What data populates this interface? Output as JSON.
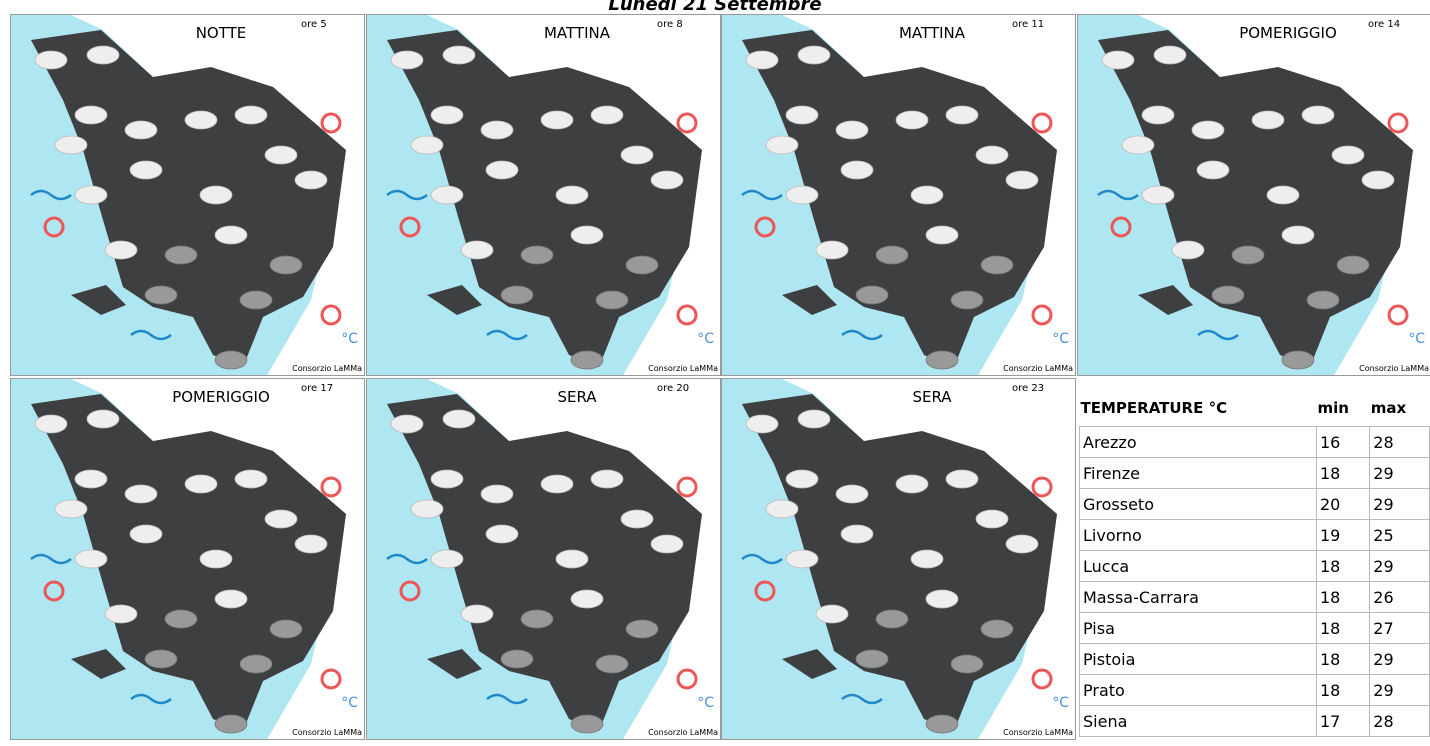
{
  "header": {
    "title": "Lunedì 21 Settembre"
  },
  "panels": [
    {
      "period": "NOTTE",
      "hour": "ore 5",
      "unit": "°C",
      "credit": "Consorzio LaMMa"
    },
    {
      "period": "MATTINA",
      "hour": "ore 8",
      "unit": "°C",
      "credit": "Consorzio LaMMa"
    },
    {
      "period": "MATTINA",
      "hour": "ore 11",
      "unit": "°C",
      "credit": "Consorzio LaMMa"
    },
    {
      "period": "POMERIGGIO",
      "hour": "ore 14",
      "unit": "°C",
      "credit": "Consorzio LaMMa"
    },
    {
      "period": "POMERIGGIO",
      "hour": "ore 17",
      "unit": "°C",
      "credit": "Consorzio LaMMa"
    },
    {
      "period": "SERA",
      "hour": "ore 20",
      "unit": "°C",
      "credit": "Consorzio LaMMa"
    },
    {
      "period": "SERA",
      "hour": "ore 23",
      "unit": "°C",
      "credit": "Consorzio LaMMa"
    }
  ],
  "table": {
    "title": "TEMPERATURE °C",
    "columns": [
      "min",
      "max"
    ],
    "rows": [
      [
        "Arezzo",
        16,
        28
      ],
      [
        "Firenze",
        18,
        29
      ],
      [
        "Grosseto",
        20,
        29
      ],
      [
        "Livorno",
        19,
        25
      ],
      [
        "Lucca",
        18,
        29
      ],
      [
        "Massa-Carrara",
        18,
        26
      ],
      [
        "Pisa",
        18,
        27
      ],
      [
        "Pistoia",
        18,
        29
      ],
      [
        "Prato",
        18,
        29
      ],
      [
        "Siena",
        17,
        28
      ]
    ]
  }
}
